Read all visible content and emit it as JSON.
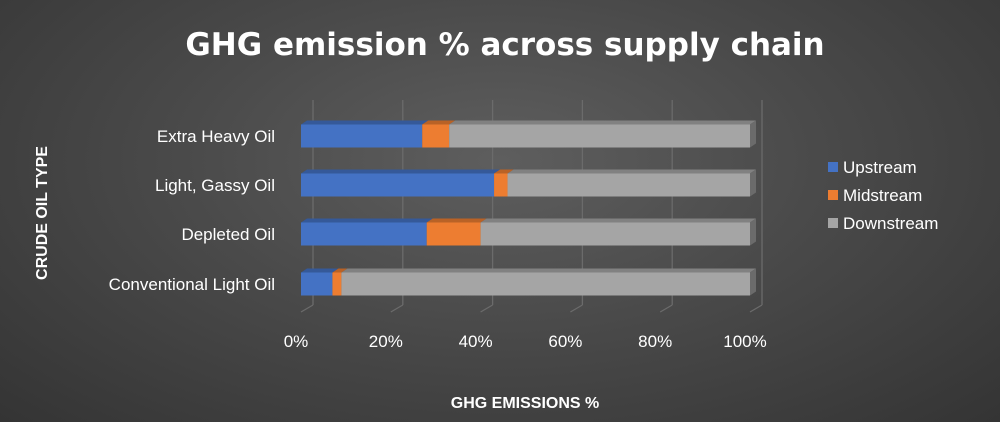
{
  "chart_data": {
    "type": "bar",
    "orientation": "horizontal",
    "stacked": "percent",
    "title": "GHG emission % across supply chain",
    "xlabel": "GHG EMISSIONS %",
    "ylabel": "CRUDE OIL TYPE",
    "categories": [
      "Extra Heavy Oil",
      "Light, Gassy Oil",
      "Depleted Oil",
      "Conventional Light Oil"
    ],
    "series": [
      {
        "name": "Upstream",
        "color": "#4472c4",
        "values": [
          27,
          43,
          28,
          7
        ]
      },
      {
        "name": "Midstream",
        "color": "#ed7d31",
        "values": [
          6,
          3,
          12,
          2
        ]
      },
      {
        "name": "Downstream",
        "color": "#a5a5a5",
        "values": [
          67,
          54,
          60,
          91
        ]
      }
    ],
    "xlim": [
      0,
      100
    ],
    "xticks": [
      "0%",
      "20%",
      "40%",
      "60%",
      "80%",
      "100%"
    ],
    "grid": true,
    "legend_position": "right"
  }
}
